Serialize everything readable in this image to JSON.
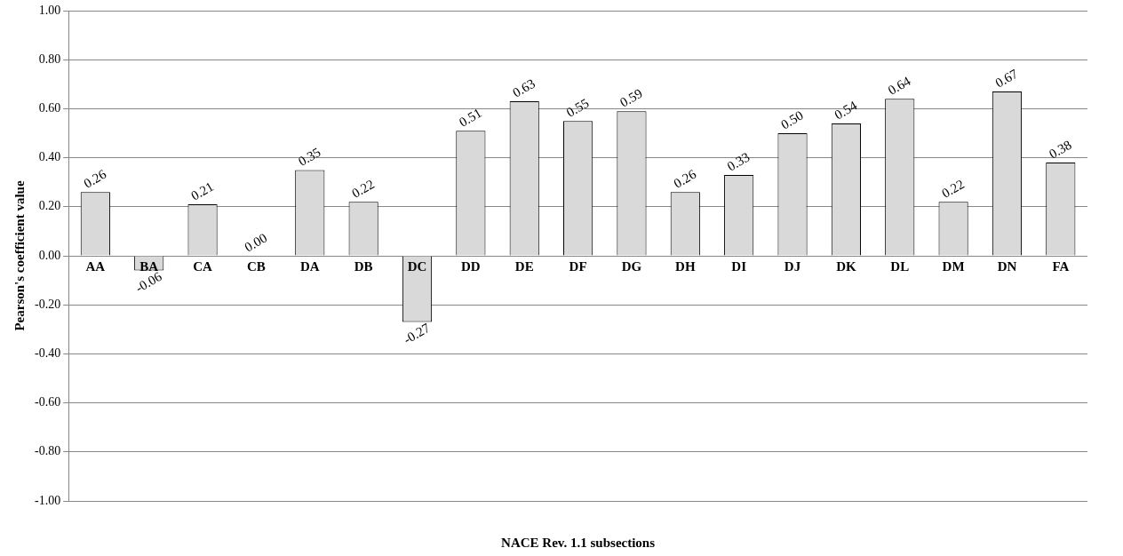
{
  "chart_data": {
    "type": "bar",
    "xlabel": "NACE Rev. 1.1 subsections",
    "ylabel": "Pearson's coefficient value",
    "categories": [
      "AA",
      "BA",
      "CA",
      "CB",
      "DA",
      "DB",
      "DC",
      "DD",
      "DE",
      "DF",
      "DG",
      "DH",
      "DI",
      "DJ",
      "DK",
      "DL",
      "DM",
      "DN",
      "FA"
    ],
    "values": [
      0.26,
      -0.06,
      0.21,
      0.0,
      0.35,
      0.22,
      -0.27,
      0.51,
      0.63,
      0.55,
      0.59,
      0.26,
      0.33,
      0.5,
      0.54,
      0.64,
      0.22,
      0.67,
      0.38
    ],
    "value_labels": [
      "0.26",
      "-0.06",
      "0.21",
      "0.00",
      "0.35",
      "0.22",
      "-0.27",
      "0.51",
      "0.63",
      "0.55",
      "0.59",
      "0.26",
      "0.33",
      "0.50",
      "0.54",
      "0.64",
      "0.22",
      "0.67",
      "0.38"
    ],
    "color": "#d9d9d9",
    "ylim": [
      -1,
      1
    ],
    "yticks": [
      {
        "value": -1,
        "label": "-1.00"
      },
      {
        "value": -0.8,
        "label": "-0.80"
      },
      {
        "value": -0.6,
        "label": "-0.60"
      },
      {
        "value": -0.4,
        "label": "-0.40"
      },
      {
        "value": -0.2,
        "label": "-0.20"
      },
      {
        "value": 0,
        "label": "0.00"
      },
      {
        "value": 0.2,
        "label": "0.20"
      },
      {
        "value": 0.4,
        "label": "0.40"
      },
      {
        "value": 0.6,
        "label": "0.60"
      },
      {
        "value": 0.8,
        "label": "0.80"
      },
      {
        "value": 1,
        "label": "1.00"
      }
    ],
    "grid": "y",
    "legend": false
  }
}
